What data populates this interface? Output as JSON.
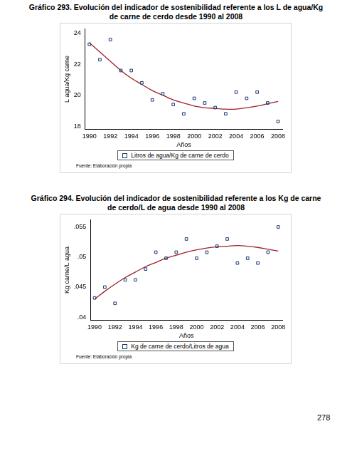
{
  "chart_data": [
    {
      "type": "scatter",
      "title": "Gráfico 293. Evolución del indicador de sostenibilidad referente a los L de agua/Kg de carne de cerdo desde 1990 al 2008",
      "x_label": "Años",
      "y_label": "L agua/Kg carne",
      "source": "Fuente: Elaboración propia",
      "legend": "bottom",
      "grid": false,
      "x": [
        1990,
        1991,
        1992,
        1993,
        1994,
        1995,
        1996,
        1997,
        1998,
        1999,
        2000,
        2001,
        2002,
        2003,
        2004,
        2005,
        2006,
        2007,
        2008
      ],
      "xlim": [
        1989.6,
        2008.4
      ],
      "xticks": [
        1990,
        1992,
        1994,
        1996,
        1998,
        2000,
        2002,
        2004,
        2006,
        2008
      ],
      "ylim": [
        17.8,
        24.3
      ],
      "yticks": [
        18,
        20,
        22,
        24
      ],
      "series": [
        {
          "name": "Litros de agua/Kg de carne de cerdo",
          "type": "scatter",
          "marker": "square",
          "color": "#1a3a6b",
          "values": [
            23.3,
            22.3,
            23.6,
            21.6,
            21.6,
            20.8,
            19.7,
            20.1,
            19.4,
            18.8,
            19.8,
            19.5,
            19.2,
            18.8,
            20.2,
            19.8,
            20.2,
            19.5,
            18.3
          ]
        },
        {
          "type": "line",
          "line_style": "solid",
          "color": "#a0202a",
          "values": [
            23.4,
            22.8,
            22.2,
            21.6,
            21.1,
            20.7,
            20.3,
            20.0,
            19.7,
            19.5,
            19.3,
            19.2,
            19.15,
            19.1,
            19.1,
            19.2,
            19.3,
            19.45,
            19.6
          ]
        }
      ]
    },
    {
      "type": "scatter",
      "title": "Gráfico 294. Evolución del indicador de sostenibilidad referente a los Kg de carne de cerdo/L de agua desde 1990 al 2008",
      "x_label": "Años",
      "y_label": "Kg carne/L agua",
      "source": "Fuente: Elaboración propia",
      "legend": "bottom",
      "grid": false,
      "x": [
        1990,
        1991,
        1992,
        1993,
        1994,
        1995,
        1996,
        1997,
        1998,
        1999,
        2000,
        2001,
        2002,
        2003,
        2004,
        2005,
        2006,
        2007,
        2008
      ],
      "xlim": [
        1989.6,
        2008.4
      ],
      "xticks": [
        1990,
        1992,
        1994,
        1996,
        1998,
        2000,
        2002,
        2004,
        2006,
        2008
      ],
      "ylim": [
        0.0395,
        0.0562
      ],
      "yticks": [
        {
          "value": 0.04,
          "label": ".04"
        },
        {
          "value": 0.045,
          "label": ".045"
        },
        {
          "value": 0.05,
          "label": ".05"
        },
        {
          "value": 0.055,
          "label": ".055"
        }
      ],
      "series": [
        {
          "name": "Kg de carne de cerdo/Litros de agua",
          "type": "scatter",
          "marker": "square",
          "color": "#1a3a6b",
          "values": [
            0.0432,
            0.045,
            0.0423,
            0.0462,
            0.0462,
            0.048,
            0.0508,
            0.0498,
            0.0508,
            0.053,
            0.0498,
            0.0508,
            0.0518,
            0.053,
            0.049,
            0.0498,
            0.049,
            0.0508,
            0.055
          ]
        },
        {
          "type": "line",
          "line_style": "solid",
          "color": "#a0202a",
          "values": [
            0.043,
            0.0443,
            0.0455,
            0.0466,
            0.0475,
            0.0484,
            0.0491,
            0.0498,
            0.0503,
            0.0508,
            0.0512,
            0.0515,
            0.0517,
            0.0518,
            0.0519,
            0.0518,
            0.0516,
            0.0513,
            0.051
          ]
        }
      ]
    }
  ],
  "page_number": "278"
}
